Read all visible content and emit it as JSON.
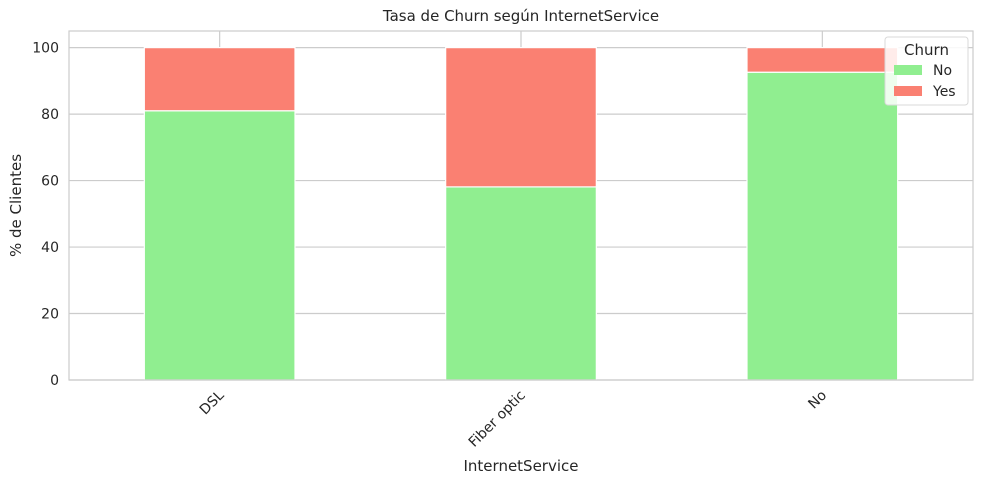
{
  "chart_data": {
    "type": "bar",
    "stacked": true,
    "title": "Tasa de Churn según InternetService",
    "xlabel": "InternetService",
    "ylabel": "% de Clientes",
    "categories": [
      "DSL",
      "Fiber optic",
      "No"
    ],
    "series": [
      {
        "name": "No",
        "color": "#90ee90",
        "values": [
          81.0,
          58.1,
          92.6
        ]
      },
      {
        "name": "Yes",
        "color": "#fa8072",
        "values": [
          19.0,
          41.9,
          7.4
        ]
      }
    ],
    "ylim": [
      0,
      105
    ],
    "yticks": [
      0,
      20,
      40,
      60,
      80,
      100
    ],
    "grid": true,
    "legend": {
      "title": "Churn",
      "placement": "top-right"
    }
  }
}
